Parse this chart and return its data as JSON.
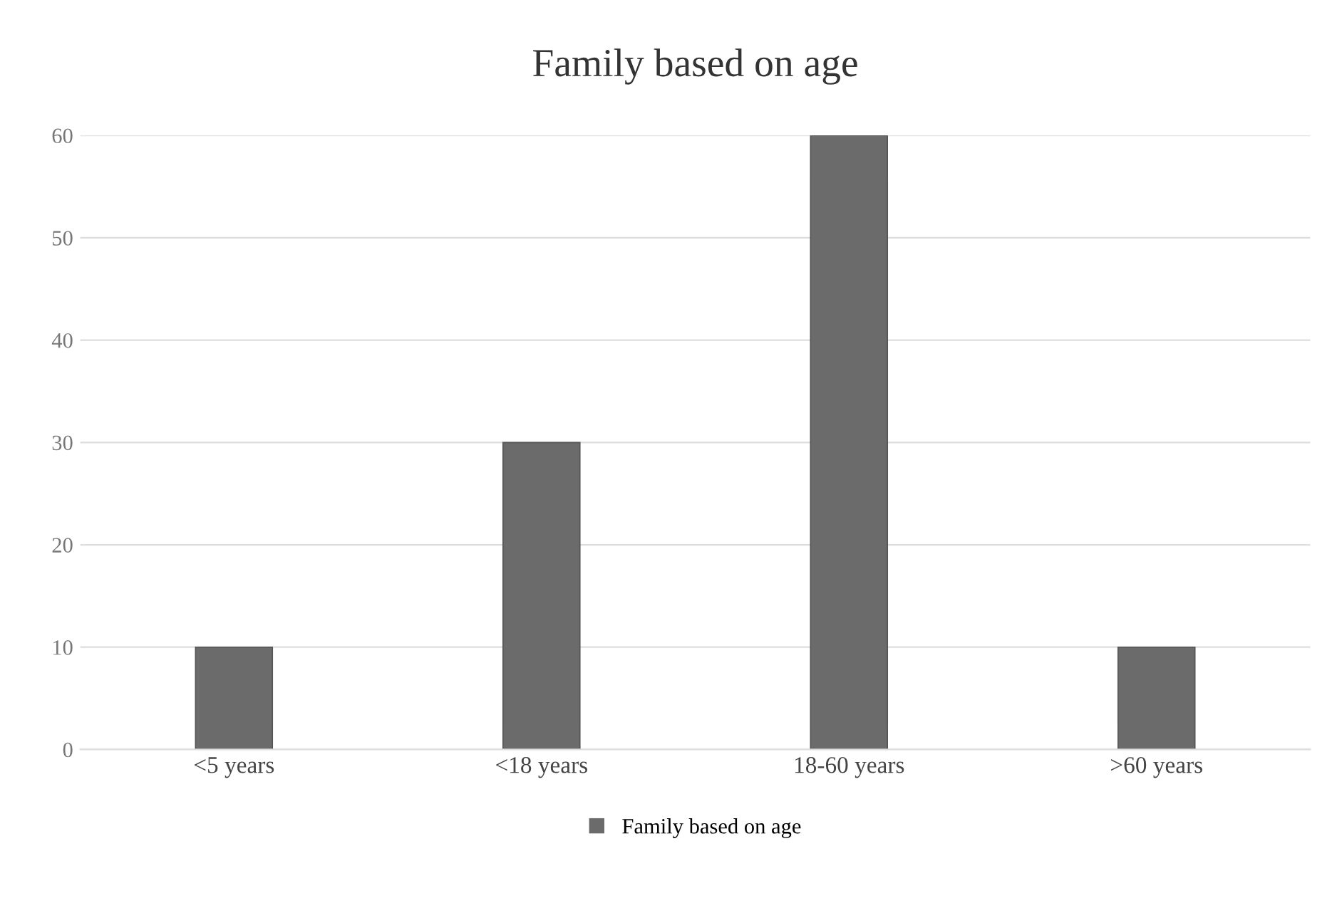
{
  "chart_data": {
    "type": "bar",
    "title": "Family based on age",
    "categories": [
      "<5 years",
      "<18 years",
      "18-60 years",
      ">60 years"
    ],
    "series": [
      {
        "name": "Family based on age",
        "color": "#6b6b6b",
        "values": [
          10,
          30,
          60,
          10
        ]
      }
    ],
    "ylim": [
      0,
      60
    ],
    "yticks": [
      0,
      10,
      20,
      30,
      40,
      50,
      60
    ],
    "grid": "y",
    "legend": "bottom"
  }
}
